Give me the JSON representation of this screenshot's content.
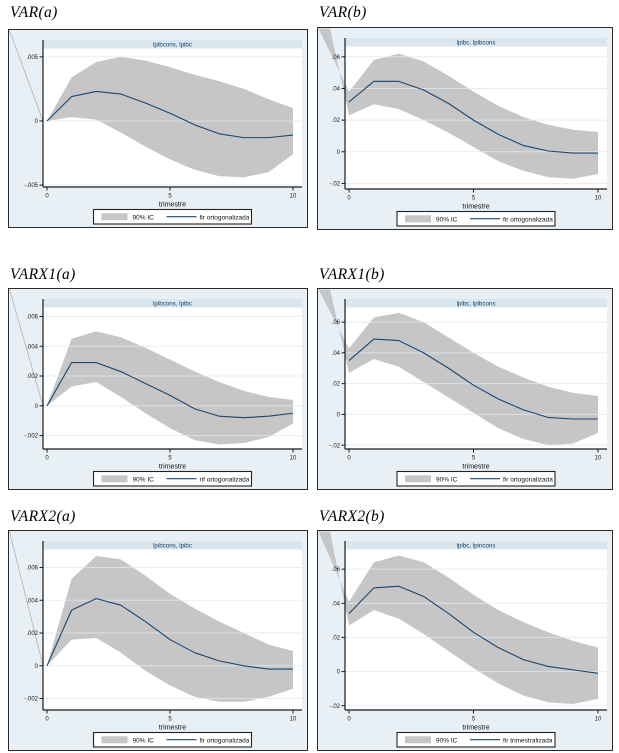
{
  "figure": {
    "description": "Six Stata impulse-response (IRF) panels in a 3x2 grid",
    "xlabel": "trimestre"
  },
  "colors": {
    "outer_background": "#e9f0f5",
    "plot_background": "#ffffff",
    "title_strip": "#d9e6ee",
    "title_text": "#13426b",
    "band": "#c6c6c6",
    "line": "#1a476f",
    "grid": "#dfeaf2",
    "axis": "#1a1a1a",
    "border": "#2a2a2a",
    "legend_background": "#ffffff"
  },
  "chart_data": [
    {
      "type": "area",
      "heading": "VAR(a)",
      "panel_title": "lpibcons, lpibc",
      "xlabel": "trimestre",
      "x": [
        0,
        1,
        2,
        3,
        4,
        5,
        6,
        7,
        8,
        9,
        10
      ],
      "xtick_labels": [
        "0",
        "5",
        "10"
      ],
      "xticks": [
        0,
        5,
        10
      ],
      "ylim": [
        -0.00515,
        0.00565
      ],
      "yticks": [
        0.005,
        0,
        -0.005
      ],
      "ytick_labels": [
        ".005",
        "0",
        "-.005"
      ],
      "legend": [
        {
          "label": "90% IC",
          "swatch": "area"
        },
        {
          "label": "fir ortogonalizada",
          "swatch": "line"
        }
      ],
      "series": [
        {
          "name": "irf",
          "values": [
            0,
            0.0019,
            0.0023,
            0.0021,
            0.0014,
            0.0006,
            -0.0003,
            -0.001,
            -0.0013,
            -0.0013,
            -0.0011
          ]
        },
        {
          "name": "upper_90",
          "values": [
            0,
            0.0034,
            0.0046,
            0.005,
            0.0047,
            0.0042,
            0.0036,
            0.0031,
            0.0025,
            0.0017,
            0.001
          ]
        },
        {
          "name": "lower_90",
          "values": [
            0,
            0.0003,
            0.0001,
            -0.0009,
            -0.002,
            -0.003,
            -0.0038,
            -0.0043,
            -0.0044,
            -0.004,
            -0.0026
          ]
        }
      ]
    },
    {
      "type": "area",
      "heading": "VAR(b)",
      "panel_title": "lpibc, lpibcons",
      "xlabel": "trimestre",
      "x": [
        0,
        1,
        2,
        3,
        4,
        5,
        6,
        7,
        8,
        9,
        10
      ],
      "xtick_labels": [
        "0",
        "5",
        "10"
      ],
      "xticks": [
        0,
        5,
        10
      ],
      "ylim": [
        -0.0235,
        0.0665
      ],
      "yticks": [
        0.06,
        0.04,
        0.02,
        0,
        -0.02
      ],
      "ytick_labels": [
        ".06",
        ".04",
        ".02",
        "0",
        "-.02"
      ],
      "legend": [
        {
          "label": "90% IC",
          "swatch": "area"
        },
        {
          "label": "fir ortogonalizada",
          "swatch": "line"
        }
      ],
      "series": [
        {
          "name": "irf",
          "values": [
            0.0315,
            0.0445,
            0.0445,
            0.039,
            0.0305,
            0.02,
            0.011,
            0.004,
            0.0005,
            -0.0008,
            -0.0008
          ]
        },
        {
          "name": "upper_90",
          "values": [
            0.038,
            0.058,
            0.062,
            0.057,
            0.048,
            0.038,
            0.029,
            0.022,
            0.017,
            0.014,
            0.0125
          ]
        },
        {
          "name": "lower_90",
          "values": [
            0.023,
            0.03,
            0.027,
            0.02,
            0.012,
            0.003,
            -0.006,
            -0.012,
            -0.016,
            -0.017,
            -0.014
          ]
        }
      ]
    },
    {
      "type": "area",
      "heading": "VARX1(a)",
      "panel_title": "lpibcons, lpibc",
      "xlabel": "trimestre",
      "x": [
        0,
        1,
        2,
        3,
        4,
        5,
        6,
        7,
        8,
        9,
        10
      ],
      "xtick_labels": [
        "0",
        "5",
        "10"
      ],
      "xticks": [
        0,
        5,
        10
      ],
      "ylim": [
        -0.0029,
        0.0066
      ],
      "yticks": [
        0.006,
        0.004,
        0.002,
        0,
        -0.002
      ],
      "ytick_labels": [
        ".006",
        ".004",
        ".002",
        "0",
        "-.002"
      ],
      "legend": [
        {
          "label": "90% IC",
          "swatch": "area"
        },
        {
          "label": "rif ortogonalizada",
          "swatch": "line"
        }
      ],
      "series": [
        {
          "name": "irf",
          "values": [
            0,
            0.0029,
            0.0029,
            0.0023,
            0.0015,
            0.0007,
            -0.0002,
            -0.0007,
            -0.0008,
            -0.0007,
            -0.0005
          ]
        },
        {
          "name": "upper_90",
          "values": [
            0,
            0.0045,
            0.005,
            0.0046,
            0.0039,
            0.0031,
            0.0023,
            0.0016,
            0.001,
            0.0006,
            0.0004
          ]
        },
        {
          "name": "lower_90",
          "values": [
            0,
            0.0013,
            0.0016,
            0.0006,
            -0.0005,
            -0.0015,
            -0.0023,
            -0.0026,
            -0.0025,
            -0.0021,
            -0.0012
          ]
        }
      ]
    },
    {
      "type": "area",
      "heading": "VARX1(b)",
      "panel_title": "lpibc, lpibcons",
      "xlabel": "trimestre",
      "x": [
        0,
        1,
        2,
        3,
        4,
        5,
        6,
        7,
        8,
        9,
        10
      ],
      "xtick_labels": [
        "0",
        "5",
        "10"
      ],
      "xticks": [
        0,
        5,
        10
      ],
      "ylim": [
        -0.0225,
        0.0695
      ],
      "yticks": [
        0.06,
        0.04,
        0.02,
        0,
        -0.02
      ],
      "ytick_labels": [
        ".06",
        ".04",
        ".02",
        "0",
        "-.02"
      ],
      "legend": [
        {
          "label": "90% IC",
          "swatch": "area"
        },
        {
          "label": "fir ortogonalizada",
          "swatch": "line"
        }
      ],
      "series": [
        {
          "name": "irf",
          "values": [
            0.035,
            0.049,
            0.048,
            0.04,
            0.03,
            0.019,
            0.01,
            0.003,
            -0.002,
            -0.003,
            -0.003
          ]
        },
        {
          "name": "upper_90",
          "values": [
            0.043,
            0.063,
            0.066,
            0.06,
            0.05,
            0.04,
            0.031,
            0.024,
            0.018,
            0.014,
            0.012
          ]
        },
        {
          "name": "lower_90",
          "values": [
            0.027,
            0.036,
            0.031,
            0.021,
            0.011,
            0.001,
            -0.009,
            -0.016,
            -0.02,
            -0.019,
            -0.012
          ]
        }
      ]
    },
    {
      "type": "area",
      "heading": "VARX2(a)",
      "panel_title": "lpibcons, lpibc",
      "xlabel": "trimestre",
      "x": [
        0,
        1,
        2,
        3,
        4,
        5,
        6,
        7,
        8,
        9,
        10
      ],
      "xtick_labels": [
        "0",
        "5",
        "10"
      ],
      "xticks": [
        0,
        5,
        10
      ],
      "ylim": [
        -0.0027,
        0.0071
      ],
      "yticks": [
        0.006,
        0.004,
        0.002,
        0,
        -0.002
      ],
      "ytick_labels": [
        ".006",
        ".004",
        ".002",
        "0",
        "-.002"
      ],
      "legend": [
        {
          "label": "90% IC",
          "swatch": "area"
        },
        {
          "label": "fir ortogonalizada",
          "swatch": "line"
        }
      ],
      "series": [
        {
          "name": "irf",
          "values": [
            0,
            0.0034,
            0.0041,
            0.0037,
            0.0027,
            0.0016,
            0.0008,
            0.0003,
            0.0,
            -0.0002,
            -0.0002
          ]
        },
        {
          "name": "upper_90",
          "values": [
            0,
            0.0053,
            0.0067,
            0.0065,
            0.0055,
            0.0044,
            0.0035,
            0.0027,
            0.002,
            0.0013,
            0.0009
          ]
        },
        {
          "name": "lower_90",
          "values": [
            0,
            0.0016,
            0.0017,
            0.0008,
            -0.0003,
            -0.0012,
            -0.0019,
            -0.0022,
            -0.0022,
            -0.0019,
            -0.0014
          ]
        }
      ]
    },
    {
      "type": "area",
      "heading": "VARX2(b)",
      "panel_title": "lpibc, lpincons",
      "xlabel": "trimestre",
      "x": [
        0,
        1,
        2,
        3,
        4,
        5,
        6,
        7,
        8,
        9,
        10
      ],
      "xtick_labels": [
        "0",
        "5",
        "10"
      ],
      "xticks": [
        0,
        5,
        10
      ],
      "ylim": [
        -0.0225,
        0.0715
      ],
      "yticks": [
        0.06,
        0.04,
        0.02,
        0,
        -0.02
      ],
      "ytick_labels": [
        ".06",
        ".04",
        ".02",
        "0",
        "-.02"
      ],
      "legend": [
        {
          "label": "90% IC",
          "swatch": "area"
        },
        {
          "label": "fir trimestralizada",
          "swatch": "line"
        }
      ],
      "series": [
        {
          "name": "irf",
          "values": [
            0.034,
            0.049,
            0.05,
            0.044,
            0.034,
            0.023,
            0.014,
            0.007,
            0.003,
            0.001,
            -0.001
          ]
        },
        {
          "name": "upper_90",
          "values": [
            0.041,
            0.064,
            0.068,
            0.064,
            0.055,
            0.045,
            0.036,
            0.029,
            0.023,
            0.018,
            0.014
          ]
        },
        {
          "name": "lower_90",
          "values": [
            0.027,
            0.036,
            0.031,
            0.022,
            0.012,
            0.002,
            -0.007,
            -0.014,
            -0.018,
            -0.019,
            -0.016
          ]
        }
      ]
    }
  ]
}
